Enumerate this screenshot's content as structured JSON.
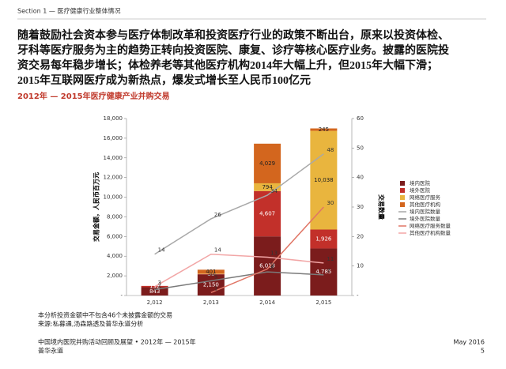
{
  "header": "Section 1 — 医疗健康行业整体情况",
  "headline": [
    "随着鼓励社会资本参与医疗体制改革和投资医疗行业的政策不断出台，原来以投资体检、",
    "牙科等医疗服务为主的趋势正转向投资医院、康复、诊疗等核心医疗业务。披露的医院投",
    "资交易每年稳步增长；体检养老等其他医疗机构2014年大幅上升，但2015年大幅下滑；",
    "2015年互联网医疗成为新热点，爆发式增长至人民币100亿元"
  ],
  "chart_data": {
    "type": "bar",
    "title": "2012年 — 2015年医疗健康产业并购交易",
    "y_label": "交易金额，人民币百万元",
    "y2_label": "交易数量",
    "categories": [
      "2,012",
      "2,013",
      "2,014",
      "2,015"
    ],
    "ylim": [
      0,
      18000
    ],
    "yticks": [
      {
        "value": 0,
        "label": "-"
      },
      {
        "value": 2000,
        "label": "2,000"
      },
      {
        "value": 4000,
        "label": "4,000"
      },
      {
        "value": 6000,
        "label": "6,000"
      },
      {
        "value": 8000,
        "label": "8,000"
      },
      {
        "value": 10000,
        "label": "10,000"
      },
      {
        "value": 12000,
        "label": "12,000"
      },
      {
        "value": 14000,
        "label": "14,000"
      },
      {
        "value": 16000,
        "label": "16,000"
      },
      {
        "value": 18000,
        "label": "18,000"
      }
    ],
    "y2lim": [
      0,
      60
    ],
    "y2ticks": [
      {
        "value": 0,
        "label": "-"
      },
      10,
      20,
      30,
      40,
      50,
      60
    ],
    "series": [
      {
        "name": "境内医院",
        "type": "bar",
        "color": "#7b1c1c",
        "values": [
          843,
          2150,
          6013,
          4785
        ],
        "value_labels": [
          "843",
          "2,150",
          "6,013",
          "4,785"
        ]
      },
      {
        "name": "境外医院",
        "type": "bar",
        "color": "#c2302a",
        "values": [
          132,
          36,
          4607,
          1926
        ],
        "value_labels": [
          "132",
          "36",
          "4,607",
          "1,926"
        ]
      },
      {
        "name": "网络医疗服务",
        "type": "bar",
        "color": "#e9b53e",
        "values": [
          null,
          38,
          794,
          10038
        ],
        "value_labels": [
          null,
          "38",
          "794",
          "10,038"
        ]
      },
      {
        "name": "其他医疗机构",
        "type": "bar",
        "color": "#d3661e",
        "values": [
          null,
          401,
          4029,
          245
        ],
        "value_labels": [
          null,
          "401",
          "4,029",
          "245"
        ]
      },
      {
        "name": "境内医院数量",
        "type": "line",
        "axis": "y2",
        "color": "#a8a8a8",
        "values": [
          14,
          26,
          34,
          48
        ]
      },
      {
        "name": "境外医院数量",
        "type": "line",
        "axis": "y2",
        "color": "#7a7a7a",
        "values": [
          2,
          5,
          8,
          7
        ]
      },
      {
        "name": "网络医疗服务数量",
        "type": "line",
        "axis": "y2",
        "color": "#e07565",
        "values": [
          null,
          1,
          9,
          30
        ]
      },
      {
        "name": "其他医疗机构数量",
        "type": "line",
        "axis": "y2",
        "color": "#f2a6a6",
        "values": [
          3,
          14,
          13,
          11
        ]
      }
    ]
  },
  "notes": [
    "本分析投资金额中不包含46个未披露金额的交易",
    "来源:私募通,汤森路透及普华永道分析"
  ],
  "footer": {
    "left": [
      "中国境内医院并购活动回顾及展望 • 2012年 — 2015年",
      "普华永道"
    ],
    "date": "May 2016",
    "page": "5"
  }
}
